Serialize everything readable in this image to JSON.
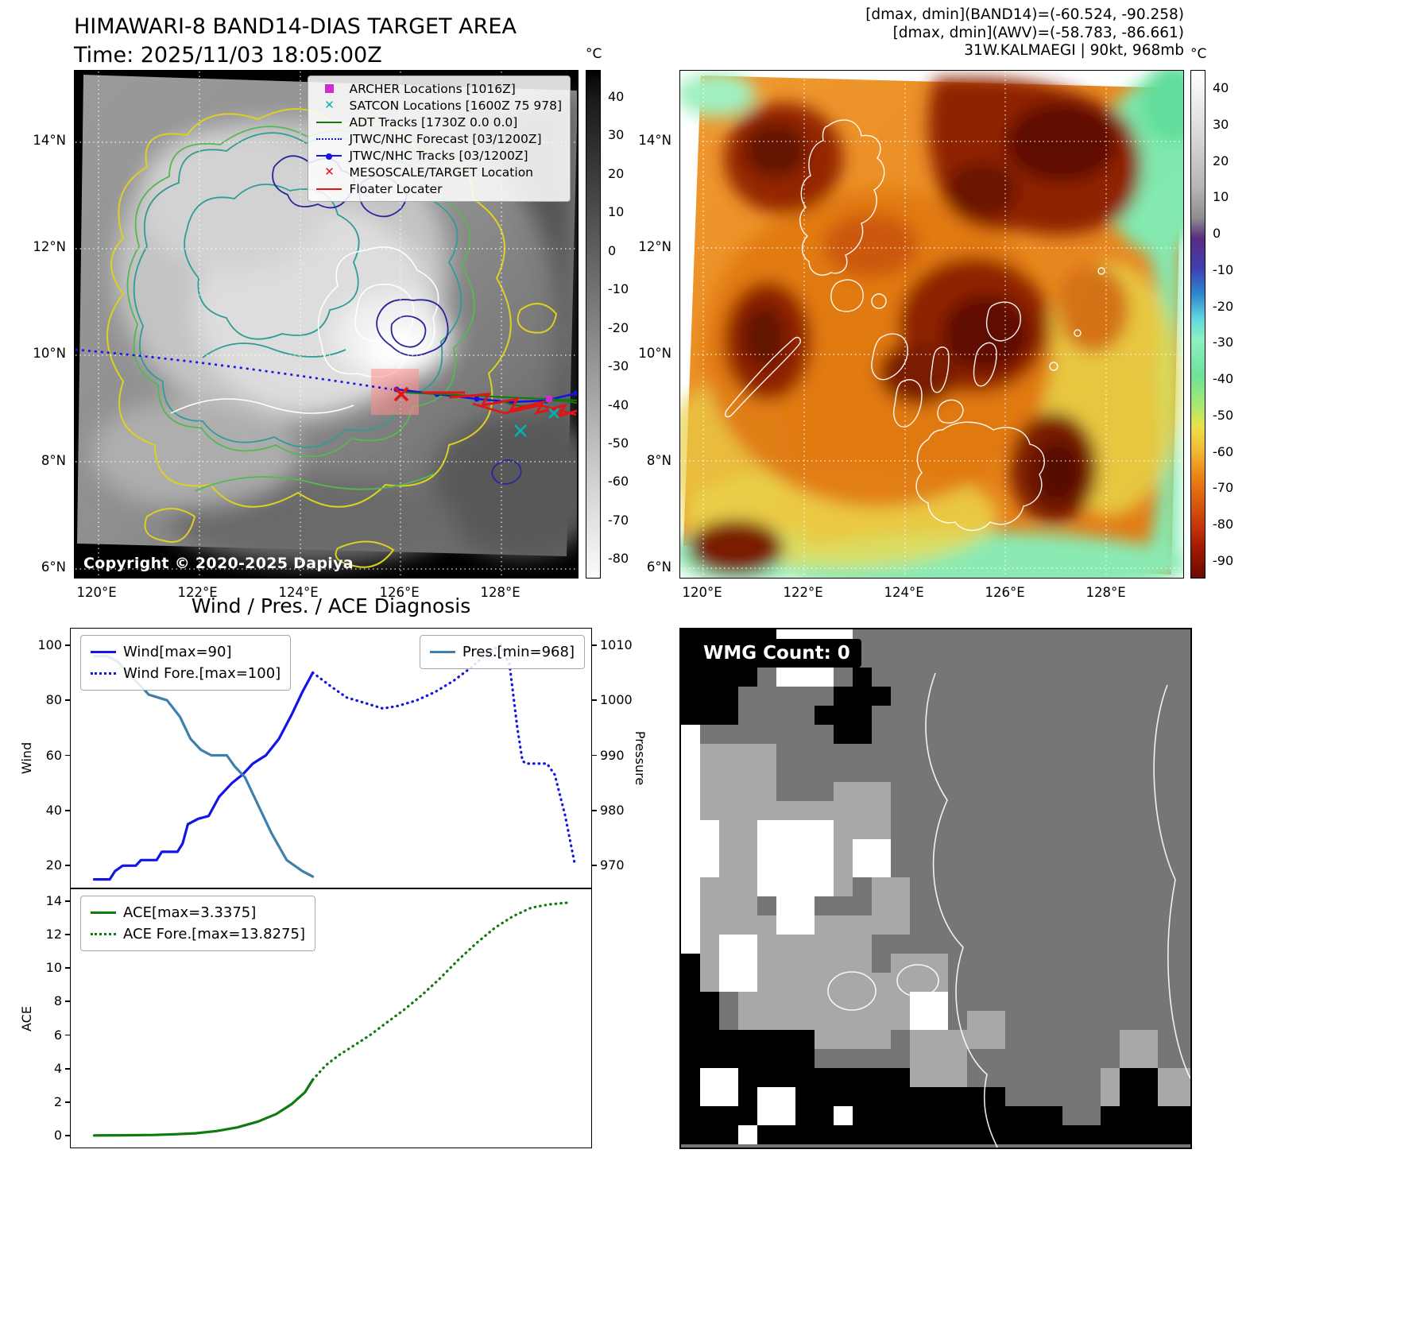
{
  "panel_tl": {
    "title_line1": "HIMAWARI-8 BAND14-DIAS TARGET AREA",
    "title_line2": "Time: 2025/11/03 18:05:00Z",
    "copyright": "Copyright © 2020-2025 Dapiya",
    "colorbar_unit": "°C",
    "colorbar_ticks": [
      "40",
      "30",
      "20",
      "10",
      "0",
      "-10",
      "-20",
      "-30",
      "-40",
      "-50",
      "-60",
      "-70",
      "-80"
    ],
    "lat_ticks": [
      "14°N",
      "12°N",
      "10°N",
      "8°N",
      "6°N"
    ],
    "lon_ticks": [
      "120°E",
      "122°E",
      "124°E",
      "126°E",
      "128°E"
    ],
    "legend": [
      {
        "label": "ARCHER Locations [1016Z]",
        "marker": "square",
        "color": "#cf2ecf"
      },
      {
        "label": "SATCON Locations [1600Z 75 978]",
        "marker": "x",
        "color": "#00b5b5"
      },
      {
        "label": "ADT Tracks [1730Z 0.0 0.0]",
        "marker": "line",
        "color": "#127a12"
      },
      {
        "label": "JTWC/NHC Forecast [03/1200Z]",
        "marker": "dotted",
        "color": "#1414e6"
      },
      {
        "label": "JTWC/NHC Tracks [03/1200Z]",
        "marker": "line-dot",
        "color": "#1414e6"
      },
      {
        "label": "MESOSCALE/TARGET Location",
        "marker": "x",
        "color": "#e31414"
      },
      {
        "label": "Floater Locater",
        "marker": "line",
        "color": "#e31414"
      }
    ]
  },
  "panel_tr": {
    "header_lines": [
      "[dmax, dmin](BAND14)=(-60.524, -90.258)",
      "[dmax, dmin](AWV)=(-58.783, -86.661)",
      "31W.KALMAEGI | 90kt, 968mb"
    ],
    "colorbar_unit": "°C",
    "colorbar_ticks": [
      "40",
      "30",
      "20",
      "10",
      "0",
      "-10",
      "-20",
      "-30",
      "-40",
      "-50",
      "-60",
      "-70",
      "-80",
      "-90"
    ],
    "lat_ticks": [
      "14°N",
      "12°N",
      "10°N",
      "8°N",
      "6°N"
    ],
    "lon_ticks": [
      "120°E",
      "122°E",
      "124°E",
      "126°E",
      "128°E"
    ]
  },
  "panel_br": {
    "wmg_label": "WMG Count: 0"
  },
  "chart_data": [
    {
      "type": "line",
      "title": "Wind / Pres. / ACE Diagnosis",
      "ylabel": "Wind",
      "ylabel_right": "Pressure",
      "ylim": [
        12,
        106
      ],
      "ylim_right": [
        966,
        1013
      ],
      "yticks": [
        20,
        40,
        60,
        80,
        100
      ],
      "yticks_right": [
        970,
        980,
        990,
        1000,
        1010
      ],
      "legend_position": "upper left / upper right",
      "series": [
        {
          "name": "Wind[max=90]",
          "style": "solid",
          "color": "#1414e6",
          "axis": "left",
          "points": [
            [
              0.045,
              15
            ],
            [
              0.075,
              15
            ],
            [
              0.085,
              18
            ],
            [
              0.1,
              20
            ],
            [
              0.125,
              20
            ],
            [
              0.135,
              22
            ],
            [
              0.165,
              22
            ],
            [
              0.175,
              25
            ],
            [
              0.205,
              25
            ],
            [
              0.215,
              28
            ],
            [
              0.225,
              35
            ],
            [
              0.245,
              37
            ],
            [
              0.265,
              38
            ],
            [
              0.285,
              45
            ],
            [
              0.31,
              50
            ],
            [
              0.33,
              53
            ],
            [
              0.35,
              57
            ],
            [
              0.375,
              60
            ],
            [
              0.4,
              66
            ],
            [
              0.425,
              75
            ],
            [
              0.445,
              83
            ],
            [
              0.465,
              90
            ]
          ]
        },
        {
          "name": "Wind Fore.[max=100]",
          "style": "dotted",
          "color": "#1414e6",
          "axis": "left",
          "points": [
            [
              0.465,
              90
            ],
            [
              0.5,
              85
            ],
            [
              0.53,
              81
            ],
            [
              0.565,
              79
            ],
            [
              0.6,
              77
            ],
            [
              0.63,
              78
            ],
            [
              0.665,
              80
            ],
            [
              0.7,
              83
            ],
            [
              0.735,
              87
            ],
            [
              0.77,
              92
            ],
            [
              0.8,
              97
            ],
            [
              0.825,
              100
            ],
            [
              0.843,
              93
            ],
            [
              0.858,
              70
            ],
            [
              0.868,
              58
            ],
            [
              0.875,
              57
            ],
            [
              0.915,
              57
            ],
            [
              0.93,
              53
            ],
            [
              0.95,
              38
            ],
            [
              0.968,
              21
            ]
          ]
        },
        {
          "name": "Pres.[min=968]",
          "style": "solid",
          "color": "#3f7fae",
          "axis": "right",
          "points": [
            [
              0.045,
              1008
            ],
            [
              0.07,
              1008
            ],
            [
              0.09,
              1007
            ],
            [
              0.11,
              1005
            ],
            [
              0.13,
              1003
            ],
            [
              0.15,
              1001
            ],
            [
              0.185,
              1000
            ],
            [
              0.21,
              997
            ],
            [
              0.23,
              993
            ],
            [
              0.25,
              991
            ],
            [
              0.27,
              990
            ],
            [
              0.3,
              990
            ],
            [
              0.315,
              988
            ],
            [
              0.335,
              986
            ],
            [
              0.355,
              982
            ],
            [
              0.385,
              976
            ],
            [
              0.415,
              971
            ],
            [
              0.445,
              969
            ],
            [
              0.465,
              968
            ]
          ]
        }
      ]
    },
    {
      "type": "line",
      "ylabel": "ACE",
      "ylim": [
        -0.7,
        14.7
      ],
      "yticks": [
        0,
        2,
        4,
        6,
        8,
        10,
        12,
        14
      ],
      "legend_position": "upper left",
      "series": [
        {
          "name": "ACE[max=3.3375]",
          "style": "solid",
          "color": "#0f7a0f",
          "axis": "left",
          "points": [
            [
              0.045,
              0.02
            ],
            [
              0.1,
              0.03
            ],
            [
              0.16,
              0.05
            ],
            [
              0.2,
              0.09
            ],
            [
              0.24,
              0.15
            ],
            [
              0.28,
              0.28
            ],
            [
              0.32,
              0.5
            ],
            [
              0.36,
              0.85
            ],
            [
              0.395,
              1.3
            ],
            [
              0.425,
              1.9
            ],
            [
              0.45,
              2.6
            ],
            [
              0.465,
              3.34
            ]
          ]
        },
        {
          "name": "ACE Fore.[max=13.8275]",
          "style": "dotted",
          "color": "#0f7a0f",
          "axis": "left",
          "points": [
            [
              0.465,
              3.34
            ],
            [
              0.49,
              4.2
            ],
            [
              0.515,
              4.8
            ],
            [
              0.545,
              5.4
            ],
            [
              0.575,
              6.0
            ],
            [
              0.605,
              6.7
            ],
            [
              0.64,
              7.5
            ],
            [
              0.675,
              8.4
            ],
            [
              0.71,
              9.4
            ],
            [
              0.745,
              10.5
            ],
            [
              0.78,
              11.5
            ],
            [
              0.815,
              12.4
            ],
            [
              0.85,
              13.1
            ],
            [
              0.885,
              13.6
            ],
            [
              0.92,
              13.8
            ],
            [
              0.955,
              13.9
            ]
          ]
        }
      ]
    }
  ]
}
